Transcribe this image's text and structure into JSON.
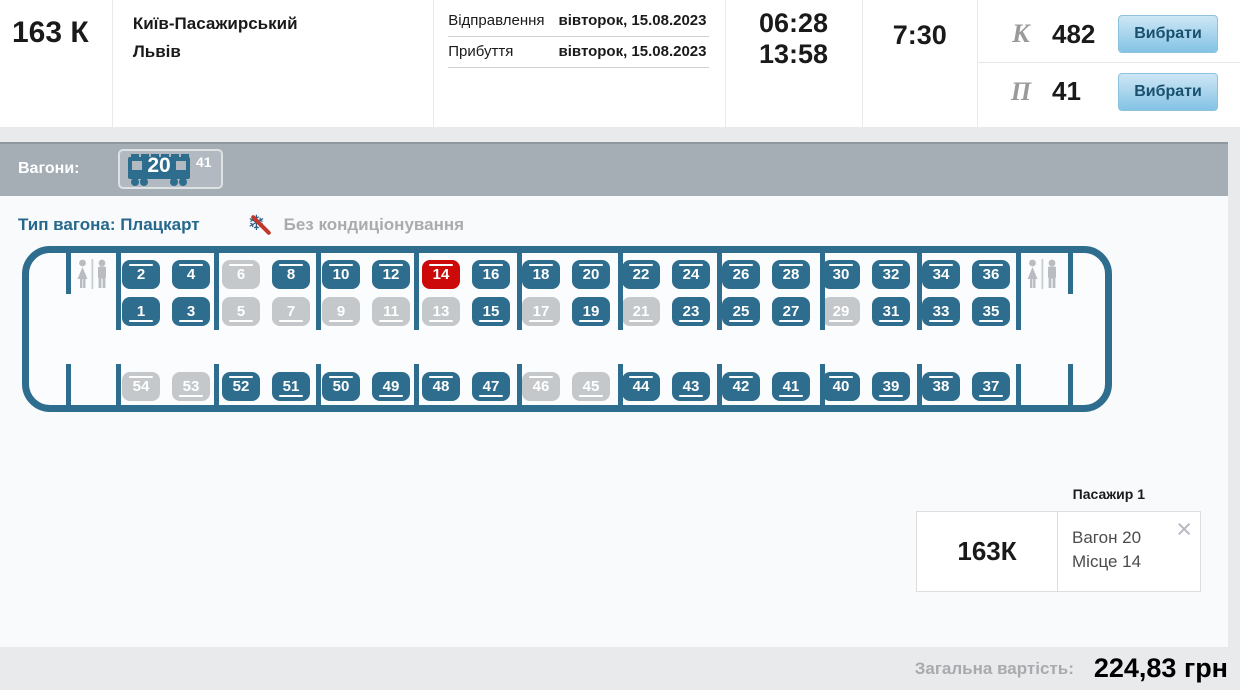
{
  "train": {
    "number": "163 К",
    "station_from": "Київ-Пасажирський",
    "station_to": "Львів",
    "departure_label": "Відправлення",
    "departure_date": "вівторок, 15.08.2023",
    "arrival_label": "Прибуття",
    "arrival_date": "вівторок, 15.08.2023",
    "departure_time": "06:28",
    "arrival_time": "13:58",
    "duration": "7:30",
    "classes": [
      {
        "code": "К",
        "free_seats": "482",
        "button_label": "Вибрати"
      },
      {
        "code": "П",
        "free_seats": "41",
        "button_label": "Вибрати"
      }
    ]
  },
  "wagons_bar": {
    "label": "Вагони:",
    "selected_wagon": "20",
    "wagon_free_seats": "41",
    "wagon_icon": "train-car-icon"
  },
  "wagon_info": {
    "type_label": "Тип вагона: Плацкарт",
    "no_ac_label": "Без кондиціонування",
    "no_ac_icon": "crossed-snowflake-icon"
  },
  "seat_map": {
    "colors": {
      "available": "#2e6d8e",
      "occupied": "#c4c8cb",
      "selected": "#cc0a0a",
      "frame": "#2e6d8e"
    },
    "wc_icon": "toilet-icon",
    "rows": [
      {
        "name": "upper-berths",
        "seats": [
          {
            "num": "2",
            "state": "available",
            "berth": "upper"
          },
          {
            "num": "4",
            "state": "available",
            "berth": "upper"
          },
          {
            "num": "6",
            "state": "occupied",
            "berth": "upper"
          },
          {
            "num": "8",
            "state": "available",
            "berth": "upper"
          },
          {
            "num": "10",
            "state": "available",
            "berth": "upper"
          },
          {
            "num": "12",
            "state": "available",
            "berth": "upper"
          },
          {
            "num": "14",
            "state": "selected",
            "berth": "upper"
          },
          {
            "num": "16",
            "state": "available",
            "berth": "upper"
          },
          {
            "num": "18",
            "state": "available",
            "berth": "upper"
          },
          {
            "num": "20",
            "state": "available",
            "berth": "upper"
          },
          {
            "num": "22",
            "state": "available",
            "berth": "upper"
          },
          {
            "num": "24",
            "state": "available",
            "berth": "upper"
          },
          {
            "num": "26",
            "state": "available",
            "berth": "upper"
          },
          {
            "num": "28",
            "state": "available",
            "berth": "upper"
          },
          {
            "num": "30",
            "state": "available",
            "berth": "upper"
          },
          {
            "num": "32",
            "state": "available",
            "berth": "upper"
          },
          {
            "num": "34",
            "state": "available",
            "berth": "upper"
          },
          {
            "num": "36",
            "state": "available",
            "berth": "upper"
          }
        ]
      },
      {
        "name": "lower-berths",
        "seats": [
          {
            "num": "1",
            "state": "available",
            "berth": "lower"
          },
          {
            "num": "3",
            "state": "available",
            "berth": "lower"
          },
          {
            "num": "5",
            "state": "occupied",
            "berth": "lower"
          },
          {
            "num": "7",
            "state": "occupied",
            "berth": "lower"
          },
          {
            "num": "9",
            "state": "occupied",
            "berth": "lower"
          },
          {
            "num": "11",
            "state": "occupied",
            "berth": "lower"
          },
          {
            "num": "13",
            "state": "occupied",
            "berth": "lower"
          },
          {
            "num": "15",
            "state": "available",
            "berth": "lower"
          },
          {
            "num": "17",
            "state": "occupied",
            "berth": "lower"
          },
          {
            "num": "19",
            "state": "available",
            "berth": "lower"
          },
          {
            "num": "21",
            "state": "occupied",
            "berth": "lower"
          },
          {
            "num": "23",
            "state": "available",
            "berth": "lower"
          },
          {
            "num": "25",
            "state": "available",
            "berth": "lower"
          },
          {
            "num": "27",
            "state": "available",
            "berth": "lower"
          },
          {
            "num": "29",
            "state": "occupied",
            "berth": "lower"
          },
          {
            "num": "31",
            "state": "available",
            "berth": "lower"
          },
          {
            "num": "33",
            "state": "available",
            "berth": "lower"
          },
          {
            "num": "35",
            "state": "available",
            "berth": "lower"
          }
        ]
      },
      {
        "name": "side-berths",
        "seats": [
          {
            "num": "54",
            "state": "occupied",
            "berth": "upper"
          },
          {
            "num": "53",
            "state": "occupied",
            "berth": "lower"
          },
          {
            "num": "52",
            "state": "available",
            "berth": "upper"
          },
          {
            "num": "51",
            "state": "available",
            "berth": "lower"
          },
          {
            "num": "50",
            "state": "available",
            "berth": "upper"
          },
          {
            "num": "49",
            "state": "available",
            "berth": "lower"
          },
          {
            "num": "48",
            "state": "available",
            "berth": "upper"
          },
          {
            "num": "47",
            "state": "available",
            "berth": "lower"
          },
          {
            "num": "46",
            "state": "occupied",
            "berth": "upper"
          },
          {
            "num": "45",
            "state": "occupied",
            "berth": "lower"
          },
          {
            "num": "44",
            "state": "available",
            "berth": "upper"
          },
          {
            "num": "43",
            "state": "available",
            "berth": "lower"
          },
          {
            "num": "42",
            "state": "available",
            "berth": "upper"
          },
          {
            "num": "41",
            "state": "available",
            "berth": "lower"
          },
          {
            "num": "40",
            "state": "available",
            "berth": "upper"
          },
          {
            "num": "39",
            "state": "available",
            "berth": "lower"
          },
          {
            "num": "38",
            "state": "available",
            "berth": "upper"
          },
          {
            "num": "37",
            "state": "available",
            "berth": "lower"
          }
        ]
      }
    ]
  },
  "passenger": {
    "title": "Пасажир 1",
    "train": "163К",
    "wagon": "Вагон 20",
    "seat": "Місце 14",
    "close_icon": "×"
  },
  "total": {
    "label": "Загальна вартість:",
    "value": "224,83 грн"
  }
}
